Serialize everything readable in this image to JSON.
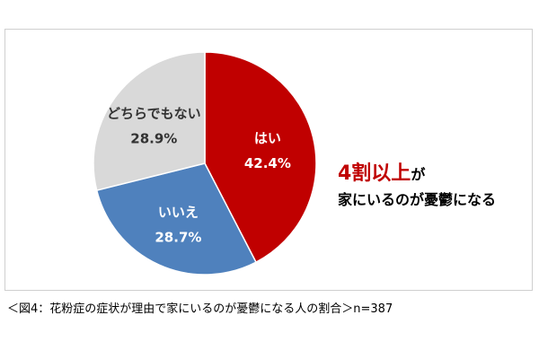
{
  "chart_data": {
    "type": "pie",
    "categories": [
      "はい",
      "いいえ",
      "どちらでもない"
    ],
    "values": [
      42.4,
      28.7,
      28.9
    ],
    "value_labels": [
      "42.4%",
      "28.7%",
      "28.9%"
    ],
    "colors": [
      "#c00000",
      "#4f81bd",
      "#d9d9d9"
    ],
    "label_colors": [
      "#ffffff",
      "#ffffff",
      "#333333"
    ],
    "start": "12 o'clock",
    "direction": "clockwise",
    "legend": "none"
  },
  "headline": {
    "emphasis": "4割以上",
    "emphasis_suffix": "が",
    "line2": "家にいるのが憂鬱になる"
  },
  "caption": {
    "text": "＜図4：花粉症の症状が理由で家にいるのが憂鬱になる人の割合＞",
    "n": "n=387"
  }
}
